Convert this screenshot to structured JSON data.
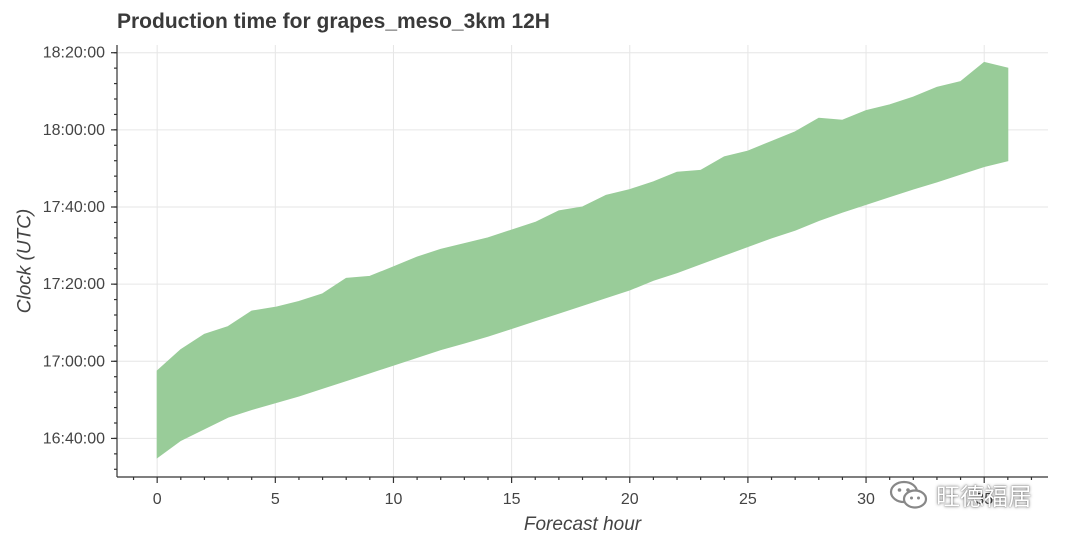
{
  "chart_data": {
    "type": "area",
    "title": "Production time for grapes_meso_3km 12H",
    "xlabel": "Forecast hour",
    "ylabel": "Clock (UTC)",
    "x_ticks": [
      0,
      5,
      10,
      15,
      20,
      25,
      30,
      35
    ],
    "x_tick_labels": [
      "0",
      "5",
      "10",
      "15",
      "20",
      "25",
      "30",
      "35"
    ],
    "y_ticks": [
      "16:40:00",
      "17:00:00",
      "17:20:00",
      "17:40:00",
      "18:00:00",
      "18:20:00"
    ],
    "xlim": [
      -1.7,
      37.7
    ],
    "ylim": [
      "16:30:00",
      "18:22:00"
    ],
    "grid": true,
    "fill_color": "#99cc99",
    "x": [
      0,
      1,
      2,
      3,
      4,
      5,
      6,
      7,
      8,
      9,
      10,
      11,
      12,
      13,
      14,
      15,
      16,
      17,
      18,
      19,
      20,
      21,
      22,
      23,
      24,
      25,
      26,
      27,
      28,
      29,
      30,
      31,
      32,
      33,
      34,
      35,
      36
    ],
    "lower": [
      "16:35:00",
      "16:39:30",
      "16:42:30",
      "16:45:30",
      "16:47:30",
      "16:49:15",
      "16:51:00",
      "16:53:00",
      "16:55:00",
      "16:57:00",
      "16:59:00",
      "17:01:00",
      "17:03:00",
      "17:04:45",
      "17:06:30",
      "17:08:30",
      "17:10:30",
      "17:12:30",
      "17:14:30",
      "17:16:30",
      "17:18:30",
      "17:21:00",
      "17:23:00",
      "17:25:15",
      "17:27:30",
      "17:29:45",
      "17:32:00",
      "17:34:00",
      "17:36:30",
      "17:38:40",
      "17:40:40",
      "17:42:40",
      "17:44:40",
      "17:46:30",
      "17:48:30",
      "17:50:30",
      "17:52:00"
    ],
    "upper": [
      "16:57:30",
      "17:03:00",
      "17:07:00",
      "17:09:00",
      "17:13:00",
      "17:14:00",
      "17:15:30",
      "17:17:30",
      "17:21:30",
      "17:22:00",
      "17:24:30",
      "17:27:00",
      "17:29:00",
      "17:30:30",
      "17:32:00",
      "17:34:00",
      "17:36:00",
      "17:39:00",
      "17:40:00",
      "17:43:00",
      "17:44:30",
      "17:46:30",
      "17:49:00",
      "17:49:30",
      "17:53:00",
      "17:54:30",
      "17:57:00",
      "17:59:30",
      "18:03:00",
      "18:02:30",
      "18:05:00",
      "18:06:30",
      "18:08:30",
      "18:11:00",
      "18:12:30",
      "18:17:30",
      "18:16:00"
    ]
  },
  "watermark": {
    "text": "旺德福居",
    "icon": "wechat-icon"
  }
}
